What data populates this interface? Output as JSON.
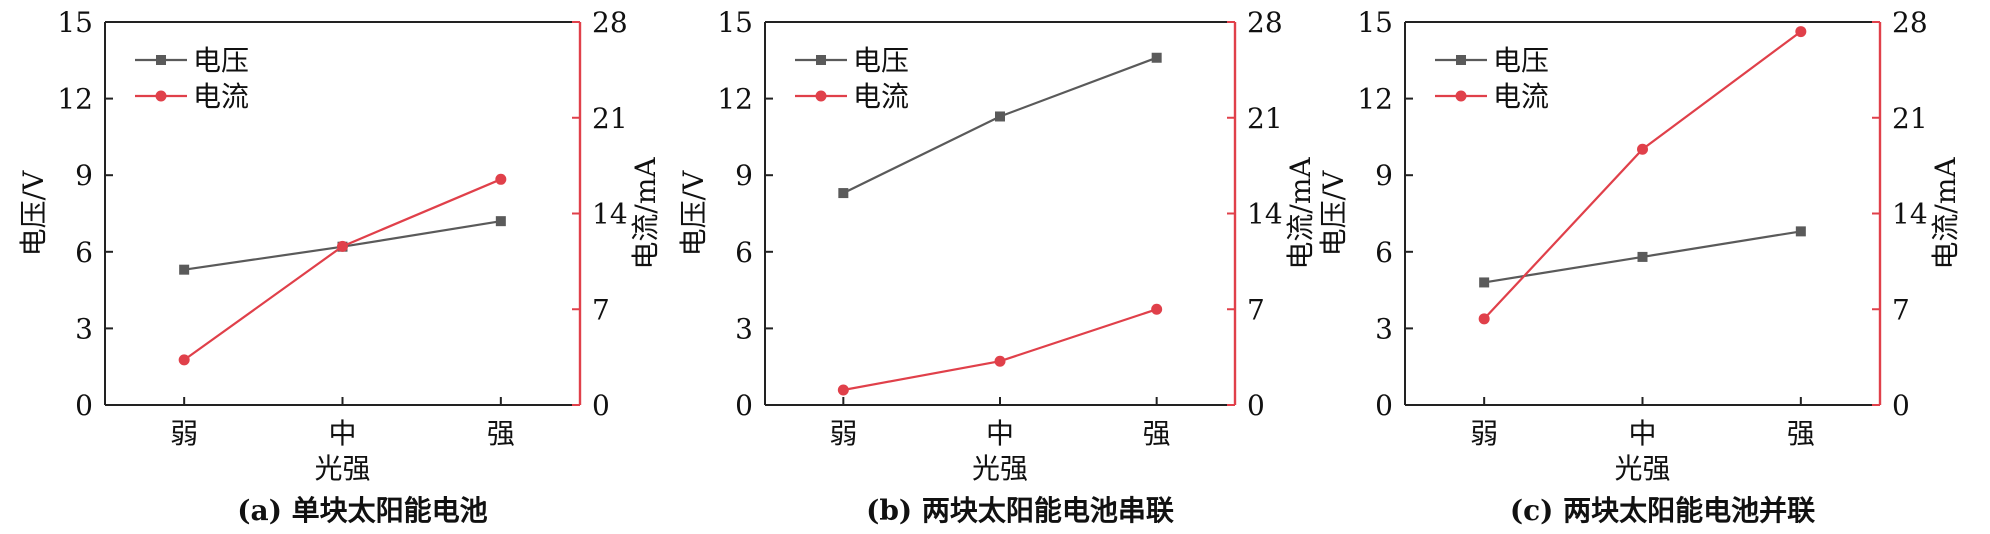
{
  "colors": {
    "voltage": "#5a5a5a",
    "current": "#e0404a",
    "axis": "#222222"
  },
  "chart_data": [
    {
      "type": "line",
      "caption": "(a) 单块太阳能电池",
      "categories": [
        "弱",
        "中",
        "强"
      ],
      "xlabel": "光强",
      "ylabel_left": "电压/V",
      "ylabel_right": "电流/mA",
      "ylim_left": [
        0,
        15
      ],
      "ylim_right": [
        0,
        28
      ],
      "yticks_left": [
        "0",
        "3",
        "6",
        "9",
        "12",
        "15"
      ],
      "yticks_right": [
        "0",
        "7",
        "14",
        "21",
        "28"
      ],
      "legend_position": "top-left",
      "series": [
        {
          "name": "电压",
          "axis": "left",
          "marker": "square",
          "values": [
            5.3,
            6.2,
            7.2
          ]
        },
        {
          "name": "电流",
          "axis": "right",
          "marker": "circle",
          "values": [
            3.3,
            11.6,
            16.5
          ]
        }
      ]
    },
    {
      "type": "line",
      "caption": "(b) 两块太阳能电池串联",
      "categories": [
        "弱",
        "中",
        "强"
      ],
      "xlabel": "光强",
      "ylabel_left": "电压/V",
      "ylabel_right": "电流/mA",
      "ylim_left": [
        0,
        15
      ],
      "ylim_right": [
        0,
        28
      ],
      "yticks_left": [
        "0",
        "3",
        "6",
        "9",
        "12",
        "15"
      ],
      "yticks_right": [
        "0",
        "7",
        "14",
        "21",
        "28"
      ],
      "legend_position": "top-left",
      "series": [
        {
          "name": "电压",
          "axis": "left",
          "marker": "square",
          "values": [
            8.3,
            11.3,
            13.6
          ]
        },
        {
          "name": "电流",
          "axis": "right",
          "marker": "circle",
          "values": [
            1.1,
            3.2,
            7.0
          ]
        }
      ]
    },
    {
      "type": "line",
      "caption": "(c) 两块太阳能电池并联",
      "categories": [
        "弱",
        "中",
        "强"
      ],
      "xlabel": "光强",
      "ylabel_left": "电压/V",
      "ylabel_right": "电流/mA",
      "ylim_left": [
        0,
        15
      ],
      "ylim_right": [
        0,
        28
      ],
      "yticks_left": [
        "0",
        "3",
        "6",
        "9",
        "12",
        "15"
      ],
      "yticks_right": [
        "0",
        "7",
        "14",
        "21",
        "28"
      ],
      "legend_position": "top-left",
      "series": [
        {
          "name": "电压",
          "axis": "left",
          "marker": "square",
          "values": [
            4.8,
            5.8,
            6.8
          ]
        },
        {
          "name": "电流",
          "axis": "right",
          "marker": "circle",
          "values": [
            6.3,
            18.7,
            27.3
          ]
        }
      ]
    }
  ]
}
